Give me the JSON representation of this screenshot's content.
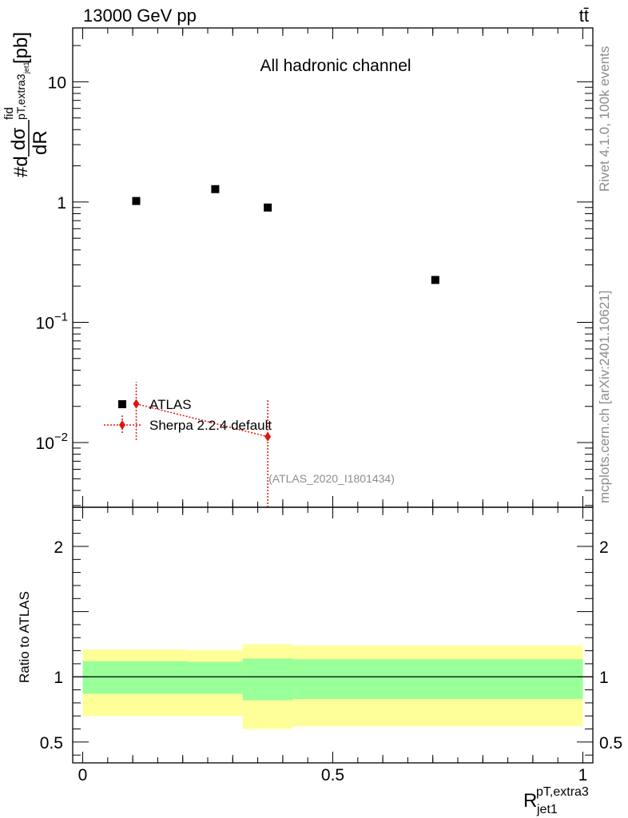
{
  "header": {
    "left_title": "13000 GeV pp",
    "right_title": "tt̄",
    "channel_label": "All hadronic channel",
    "analysis_tag": "(ATLAS_2020_I1801434)",
    "side_rivet": "Rivet 4.1.0,  100k events",
    "side_mcplots": "mcplots.cern.ch [arXiv:2401.10621]"
  },
  "legend": {
    "data_label": "ATLAS",
    "mc_label": "Sherpa 2.2.4 default"
  },
  "colors": {
    "data": "#000000",
    "mc": "#e0140f",
    "band_inner": "#99ff99",
    "band_outer": "#ffff99"
  },
  "chart_data": [
    {
      "type": "scatter",
      "panel": "main",
      "ylabel": "#d dσ^fid_{p_T,extra3/jet1} / dR [pb]",
      "xlabel": "R_jet1^{pT,extra3}",
      "yscale": "log",
      "xlim": [
        -0.02,
        1.02
      ],
      "ylim": [
        0.0029,
        28
      ],
      "yticks": [
        {
          "value": 0.01,
          "label": "10",
          "exp": "−2"
        },
        {
          "value": 0.1,
          "label": "10",
          "exp": "−1"
        },
        {
          "value": 1,
          "label": "1",
          "exp": ""
        },
        {
          "value": 10,
          "label": "10",
          "exp": ""
        }
      ],
      "series": [
        {
          "name": "ATLAS",
          "x": [
            0.107,
            0.265,
            0.37,
            0.705
          ],
          "y": [
            1.02,
            1.28,
            0.9,
            0.225
          ]
        },
        {
          "name": "Sherpa 2.2.4 default",
          "points": [
            {
              "x": 0.107,
              "y": 0.021,
              "ylo": 0.0105,
              "yhi": 0.032
            },
            {
              "x": 0.37,
              "y": 0.0112,
              "ylo": 0.0029,
              "yhi": 0.0225
            }
          ]
        }
      ]
    },
    {
      "type": "area",
      "panel": "ratio",
      "ylabel": "Ratio to ATLAS",
      "xlim": [
        -0.02,
        1.02
      ],
      "ylim": [
        0.34,
        2.3
      ],
      "yticks": [
        {
          "value": 0.5,
          "label": "0.5"
        },
        {
          "value": 1,
          "label": "1"
        },
        {
          "value": 2,
          "label": "2"
        }
      ],
      "xticks": [
        {
          "value": 0,
          "label": "0"
        },
        {
          "value": 0.5,
          "label": "0.5"
        },
        {
          "value": 1,
          "label": "1"
        }
      ],
      "bins": [
        {
          "x0": 0.0,
          "x1": 0.21,
          "inner_lo": 0.87,
          "inner_hi": 1.12,
          "outer_lo": 0.7,
          "outer_hi": 1.21
        },
        {
          "x0": 0.21,
          "x1": 0.32,
          "inner_lo": 0.87,
          "inner_hi": 1.115,
          "outer_lo": 0.7,
          "outer_hi": 1.205
        },
        {
          "x0": 0.32,
          "x1": 0.42,
          "inner_lo": 0.82,
          "inner_hi": 1.14,
          "outer_lo": 0.6,
          "outer_hi": 1.25
        },
        {
          "x0": 0.42,
          "x1": 1.0,
          "inner_lo": 0.83,
          "inner_hi": 1.135,
          "outer_lo": 0.62,
          "outer_hi": 1.24
        }
      ]
    }
  ]
}
